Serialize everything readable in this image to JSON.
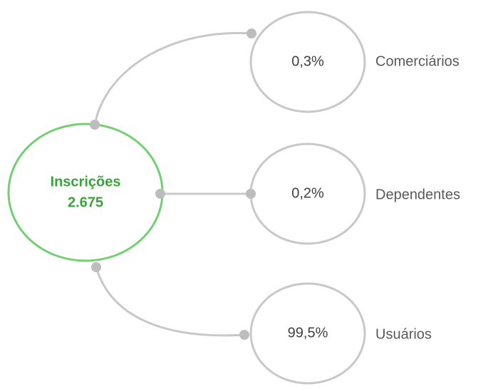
{
  "center": {
    "label": "Inscrições",
    "value": "2.675"
  },
  "nodes": [
    {
      "value": "0,3%",
      "label": "Comerciários"
    },
    {
      "value": "0,2%",
      "label": "Dependentes"
    },
    {
      "value": "99,5%",
      "label": "Usuários"
    }
  ]
}
